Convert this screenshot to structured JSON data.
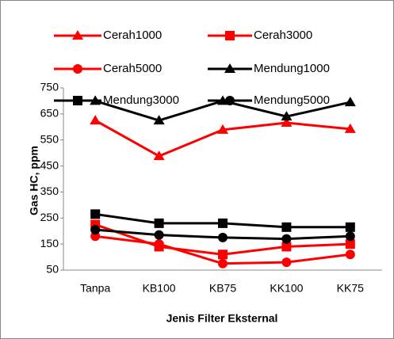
{
  "chart_data": {
    "type": "line",
    "xlabel": "Jenis Filter Eksternal",
    "ylabel": "Gas HC, ppm",
    "categories": [
      "Tanpa",
      "KB100",
      "KB75",
      "KK100",
      "KK75"
    ],
    "series": [
      {
        "name": "Cerah1000",
        "color": "#ff0000",
        "marker": "triangle",
        "values": [
          625,
          488,
          589,
          616,
          592
        ]
      },
      {
        "name": "Cerah3000",
        "color": "#ff0000",
        "marker": "square",
        "values": [
          225,
          140,
          110,
          140,
          150
        ]
      },
      {
        "name": "Cerah5000",
        "color": "#ff0000",
        "marker": "circle",
        "values": [
          180,
          150,
          75,
          80,
          110
        ]
      },
      {
        "name": "Mendung1000",
        "color": "#000000",
        "marker": "triangle",
        "values": [
          700,
          625,
          700,
          640,
          695
        ]
      },
      {
        "name": "Mendung3000",
        "color": "#000000",
        "marker": "square",
        "values": [
          265,
          230,
          230,
          215,
          215
        ]
      },
      {
        "name": "Mendung5000",
        "color": "#000000",
        "marker": "circle",
        "values": [
          205,
          185,
          175,
          170,
          180
        ]
      }
    ],
    "ylim": [
      50,
      750
    ],
    "yticks": [
      50,
      150,
      250,
      350,
      450,
      550,
      650,
      750
    ],
    "grid": false,
    "legend": "top"
  }
}
